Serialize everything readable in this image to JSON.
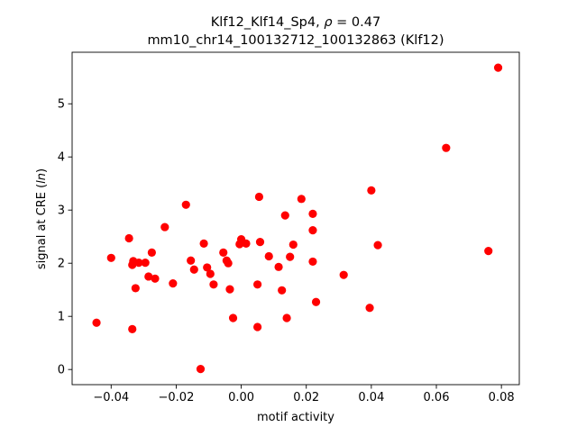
{
  "chart_data": {
    "type": "scatter",
    "title_line1_prefix": "Klf12_Klf14_Sp4, ",
    "title_line1_rho": "ρ",
    "title_line1_suffix": " = 0.47",
    "title_line2": "mm10_chr14_100132712_100132863 (Klf12)",
    "xlabel": "motif activity",
    "ylabel_prefix": "signal at CRE (",
    "ylabel_italic": "ln",
    "ylabel_suffix": ")",
    "xlim": [
      -0.052,
      0.0855
    ],
    "ylim": [
      -0.285,
      5.97
    ],
    "xticks": [
      {
        "value": -0.04,
        "label": "−0.04"
      },
      {
        "value": -0.02,
        "label": "−0.02"
      },
      {
        "value": 0.0,
        "label": "0.00"
      },
      {
        "value": 0.02,
        "label": "0.02"
      },
      {
        "value": 0.04,
        "label": "0.04"
      },
      {
        "value": 0.06,
        "label": "0.06"
      },
      {
        "value": 0.08,
        "label": "0.08"
      }
    ],
    "yticks": [
      {
        "value": 0,
        "label": "0"
      },
      {
        "value": 1,
        "label": "1"
      },
      {
        "value": 2,
        "label": "2"
      },
      {
        "value": 3,
        "label": "3"
      },
      {
        "value": 4,
        "label": "4"
      },
      {
        "value": 5,
        "label": "5"
      }
    ],
    "grid": false,
    "marker_color": "#ff0000",
    "points": [
      {
        "x": -0.0445,
        "y": 0.88
      },
      {
        "x": -0.04,
        "y": 2.1
      },
      {
        "x": -0.0345,
        "y": 2.47
      },
      {
        "x": -0.0335,
        "y": 0.76
      },
      {
        "x": -0.0335,
        "y": 1.97
      },
      {
        "x": -0.0332,
        "y": 2.04
      },
      {
        "x": -0.0325,
        "y": 1.53
      },
      {
        "x": -0.0315,
        "y": 2.01
      },
      {
        "x": -0.0295,
        "y": 2.01
      },
      {
        "x": -0.0285,
        "y": 1.75
      },
      {
        "x": -0.0275,
        "y": 2.2
      },
      {
        "x": -0.0265,
        "y": 1.71
      },
      {
        "x": -0.0235,
        "y": 2.68
      },
      {
        "x": -0.021,
        "y": 1.62
      },
      {
        "x": -0.017,
        "y": 3.1
      },
      {
        "x": -0.0155,
        "y": 2.05
      },
      {
        "x": -0.0145,
        "y": 1.88
      },
      {
        "x": -0.0125,
        "y": 0.01
      },
      {
        "x": -0.0115,
        "y": 2.37
      },
      {
        "x": -0.0105,
        "y": 1.92
      },
      {
        "x": -0.0095,
        "y": 1.8
      },
      {
        "x": -0.0085,
        "y": 1.6
      },
      {
        "x": -0.0055,
        "y": 2.2
      },
      {
        "x": -0.0045,
        "y": 2.05
      },
      {
        "x": -0.004,
        "y": 2.0
      },
      {
        "x": -0.0035,
        "y": 1.51
      },
      {
        "x": -0.0025,
        "y": 0.97
      },
      {
        "x": -0.0005,
        "y": 2.36
      },
      {
        "x": 0.0,
        "y": 2.45
      },
      {
        "x": 0.0015,
        "y": 2.37
      },
      {
        "x": 0.005,
        "y": 1.6
      },
      {
        "x": 0.005,
        "y": 0.8
      },
      {
        "x": 0.0055,
        "y": 3.25
      },
      {
        "x": 0.0058,
        "y": 2.4
      },
      {
        "x": 0.0085,
        "y": 2.13
      },
      {
        "x": 0.0115,
        "y": 1.93
      },
      {
        "x": 0.0125,
        "y": 1.49
      },
      {
        "x": 0.0135,
        "y": 2.9
      },
      {
        "x": 0.014,
        "y": 0.97
      },
      {
        "x": 0.015,
        "y": 2.12
      },
      {
        "x": 0.016,
        "y": 2.35
      },
      {
        "x": 0.0185,
        "y": 3.21
      },
      {
        "x": 0.022,
        "y": 2.03
      },
      {
        "x": 0.022,
        "y": 2.62
      },
      {
        "x": 0.022,
        "y": 2.93
      },
      {
        "x": 0.023,
        "y": 1.27
      },
      {
        "x": 0.0315,
        "y": 1.78
      },
      {
        "x": 0.0395,
        "y": 1.16
      },
      {
        "x": 0.04,
        "y": 3.37
      },
      {
        "x": 0.042,
        "y": 2.34
      },
      {
        "x": 0.063,
        "y": 4.17
      },
      {
        "x": 0.076,
        "y": 2.23
      },
      {
        "x": 0.079,
        "y": 5.68
      }
    ]
  }
}
